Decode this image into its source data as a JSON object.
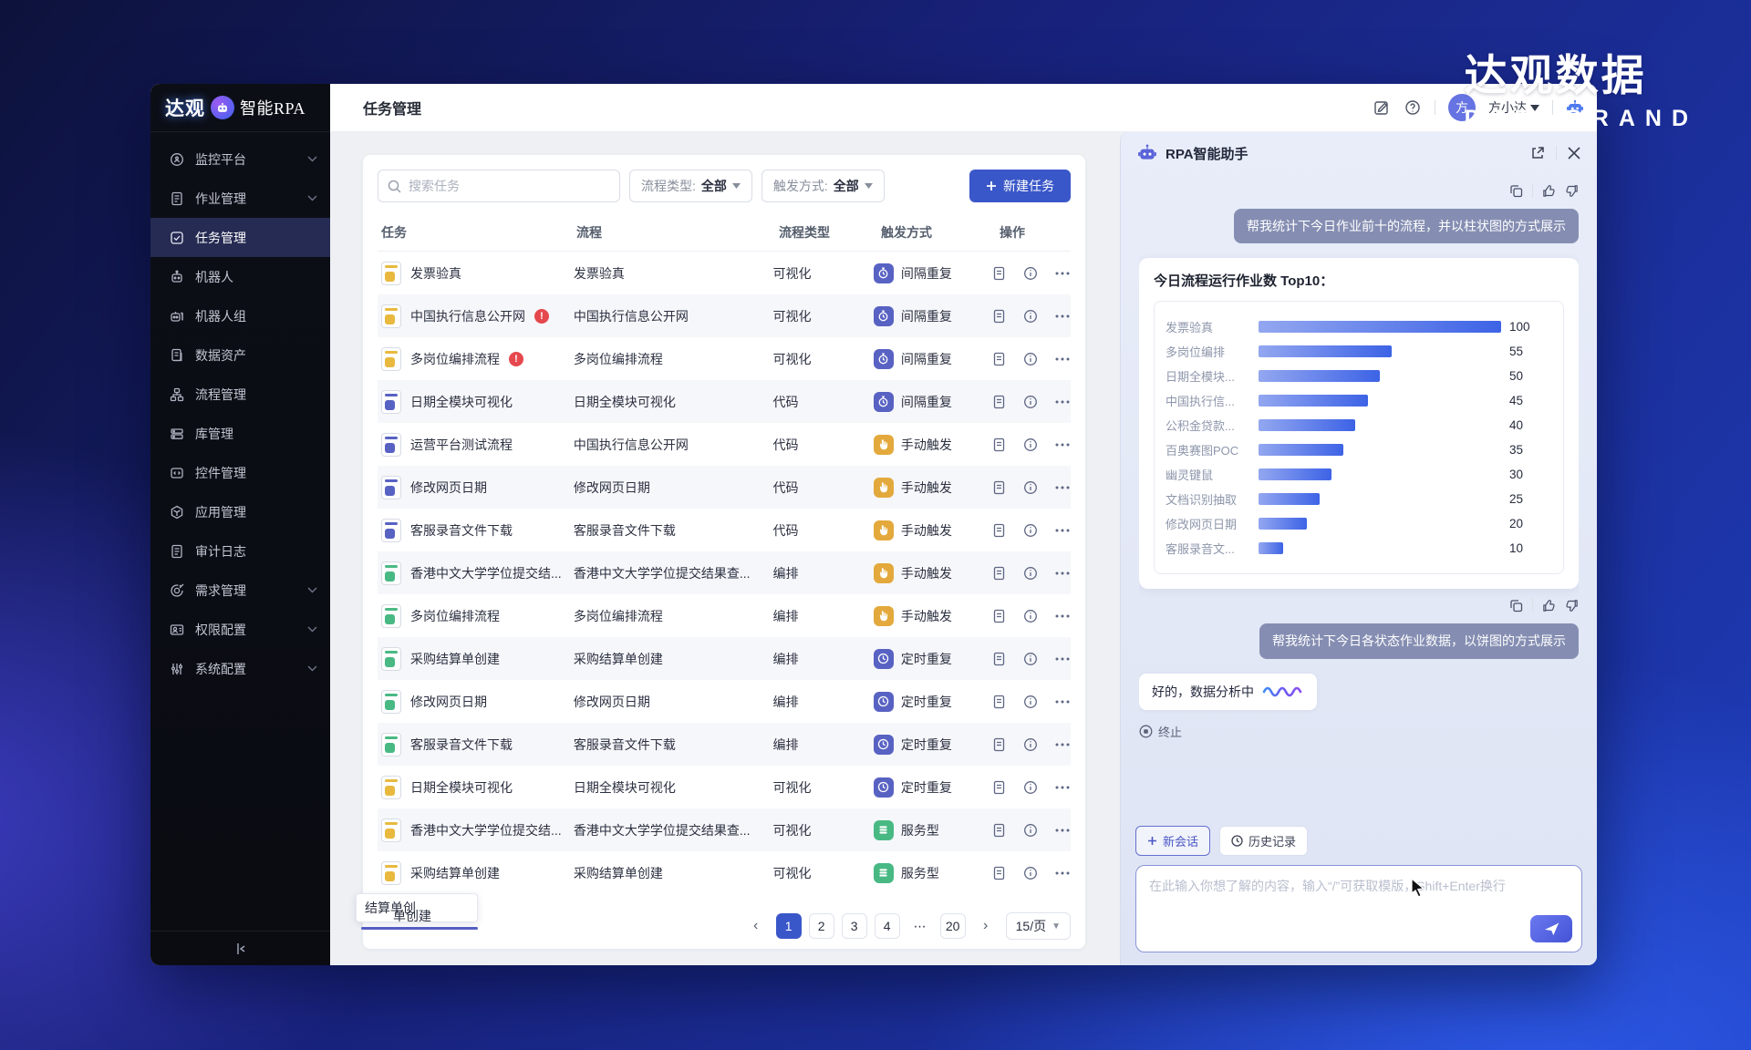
{
  "watermark": {
    "cn": "达观数据",
    "en": "DATAGRAND"
  },
  "app": {
    "logo": {
      "brand": "达观",
      "product": "智能RPA"
    },
    "page_title": "任务管理",
    "user": {
      "initial": "方",
      "name": "方小达"
    }
  },
  "sidebar": {
    "items": [
      {
        "key": "monitor",
        "label": "监控平台",
        "icon": "monitor",
        "chevron": true,
        "active": false
      },
      {
        "key": "jobs",
        "label": "作业管理",
        "icon": "document",
        "chevron": true,
        "active": false
      },
      {
        "key": "tasks",
        "label": "任务管理",
        "icon": "task",
        "chevron": false,
        "active": true
      },
      {
        "key": "robot",
        "label": "机器人",
        "icon": "robot",
        "chevron": false,
        "active": false
      },
      {
        "key": "robotgroup",
        "label": "机器人组",
        "icon": "robotgroup",
        "chevron": false,
        "active": false
      },
      {
        "key": "dataasset",
        "label": "数据资产",
        "icon": "dataasset",
        "chevron": false,
        "active": false
      },
      {
        "key": "flow",
        "label": "流程管理",
        "icon": "flow",
        "chevron": false,
        "active": false
      },
      {
        "key": "library",
        "label": "库管理",
        "icon": "library",
        "chevron": false,
        "active": false
      },
      {
        "key": "widget",
        "label": "控件管理",
        "icon": "widget",
        "chevron": false,
        "active": false
      },
      {
        "key": "apps",
        "label": "应用管理",
        "icon": "apps",
        "chevron": false,
        "active": false
      },
      {
        "key": "audit",
        "label": "审计日志",
        "icon": "audit",
        "chevron": false,
        "active": false
      },
      {
        "key": "demand",
        "label": "需求管理",
        "icon": "demand",
        "chevron": true,
        "active": false
      },
      {
        "key": "permission",
        "label": "权限配置",
        "icon": "permission",
        "chevron": true,
        "active": false
      },
      {
        "key": "system",
        "label": "系统配置",
        "icon": "system",
        "chevron": true,
        "active": false
      }
    ]
  },
  "filters": {
    "search_placeholder": "搜索任务",
    "process_type_label": "流程类型:",
    "process_type_value": "全部",
    "trigger_label": "触发方式:",
    "trigger_value": "全部",
    "new_task_label": "新建任务"
  },
  "table": {
    "columns": [
      "任务",
      "流程",
      "流程类型",
      "触发方式",
      "操作"
    ],
    "rows": [
      {
        "task": "发票验真",
        "icon": "visual",
        "alert": false,
        "process": "发票验真",
        "type": "可视化",
        "trigger": "间隔重复",
        "trigger_type": "interval"
      },
      {
        "task": "中国执行信息公开网",
        "icon": "visual",
        "alert": true,
        "process": "中国执行信息公开网",
        "type": "可视化",
        "trigger": "间隔重复",
        "trigger_type": "interval"
      },
      {
        "task": "多岗位编排流程",
        "icon": "visual",
        "alert": true,
        "process": "多岗位编排流程",
        "type": "可视化",
        "trigger": "间隔重复",
        "trigger_type": "interval"
      },
      {
        "task": "日期全模块可视化",
        "icon": "code",
        "alert": false,
        "process": "日期全模块可视化",
        "type": "代码",
        "trigger": "间隔重复",
        "trigger_type": "interval"
      },
      {
        "task": "运营平台测试流程",
        "icon": "code",
        "alert": false,
        "process": "中国执行信息公开网",
        "type": "代码",
        "trigger": "手动触发",
        "trigger_type": "manual"
      },
      {
        "task": "修改网页日期",
        "icon": "code",
        "alert": false,
        "process": "修改网页日期",
        "type": "代码",
        "trigger": "手动触发",
        "trigger_type": "manual"
      },
      {
        "task": "客服录音文件下载",
        "icon": "code",
        "alert": false,
        "process": "客服录音文件下载",
        "type": "代码",
        "trigger": "手动触发",
        "trigger_type": "manual"
      },
      {
        "task": "香港中文大学学位提交结...",
        "icon": "orchestration",
        "alert": false,
        "process": "香港中文大学学位提交结果查...",
        "type": "编排",
        "trigger": "手动触发",
        "trigger_type": "manual"
      },
      {
        "task": "多岗位编排流程",
        "icon": "orchestration",
        "alert": false,
        "process": "多岗位编排流程",
        "type": "编排",
        "trigger": "手动触发",
        "trigger_type": "manual"
      },
      {
        "task": "采购结算单创建",
        "icon": "orchestration",
        "alert": false,
        "process": "采购结算单创建",
        "type": "编排",
        "trigger": "定时重复",
        "trigger_type": "timed"
      },
      {
        "task": "修改网页日期",
        "icon": "orchestration",
        "alert": false,
        "process": "修改网页日期",
        "type": "编排",
        "trigger": "定时重复",
        "trigger_type": "timed"
      },
      {
        "task": "客服录音文件下载",
        "icon": "orchestration",
        "alert": false,
        "process": "客服录音文件下载",
        "type": "编排",
        "trigger": "定时重复",
        "trigger_type": "timed"
      },
      {
        "task": "日期全模块可视化",
        "icon": "visual",
        "alert": false,
        "process": "日期全模块可视化",
        "type": "可视化",
        "trigger": "定时重复",
        "trigger_type": "timed"
      },
      {
        "task": "香港中文大学学位提交结...",
        "icon": "visual",
        "alert": false,
        "process": "香港中文大学学位提交结果查...",
        "type": "可视化",
        "trigger": "服务型",
        "trigger_type": "service"
      },
      {
        "task": "采购结算单创建",
        "icon": "visual",
        "alert": false,
        "process": "采购结算单创建",
        "type": "可视化",
        "trigger": "服务型",
        "trigger_type": "service"
      }
    ]
  },
  "tooltip": {
    "line1": "结算单创",
    "line2": "单创建"
  },
  "pagination": {
    "pages": [
      {
        "label": "1",
        "active": true,
        "plain": false
      },
      {
        "label": "2",
        "active": false,
        "plain": false
      },
      {
        "label": "3",
        "active": false,
        "plain": false
      },
      {
        "label": "4",
        "active": false,
        "plain": false
      },
      {
        "label": "⋯",
        "active": false,
        "plain": true
      },
      {
        "label": "20",
        "active": false,
        "plain": false
      }
    ],
    "size_label": "15/页"
  },
  "assistant": {
    "title": "RPA智能助手",
    "user_msg_1": "帮我统计下今日作业前十的流程，并以柱状图的方式展示",
    "user_msg_2": "帮我统计下今日各状态作业数据，以饼图的方式展示",
    "loading_text": "好的，数据分析中",
    "stop_label": "终止",
    "new_chat_label": "新会话",
    "history_label": "历史记录",
    "input_placeholder": "在此输入你想了解的内容，输入“/”可获取模版，Shift+Enter换行"
  },
  "chart_data": {
    "type": "bar",
    "orientation": "horizontal",
    "title": "今日流程运行作业数 Top10：",
    "categories": [
      "发票验真",
      "多岗位编排",
      "日期全模块...",
      "中国执行信...",
      "公积金贷款...",
      "百奥赛图POC",
      "幽灵键鼠",
      "文档识别抽取",
      "修改网页日期",
      "客服录音文..."
    ],
    "values": [
      100,
      55,
      50,
      45,
      40,
      35,
      30,
      25,
      20,
      10
    ],
    "xlim": [
      0,
      100
    ],
    "bar_color_start": "#93a7f0",
    "bar_color_end": "#3d63e6",
    "value_labels": true,
    "grid": false,
    "legend": false
  },
  "colors": {
    "primary": "#3a57c9",
    "badge_interval": "#5862c3",
    "badge_manual": "#e3a93c",
    "badge_service": "#49b984",
    "icon_visual": "#e8b93e",
    "icon_code": "#5862c3",
    "icon_orchestration": "#49b984",
    "alert": "#e5484d"
  }
}
